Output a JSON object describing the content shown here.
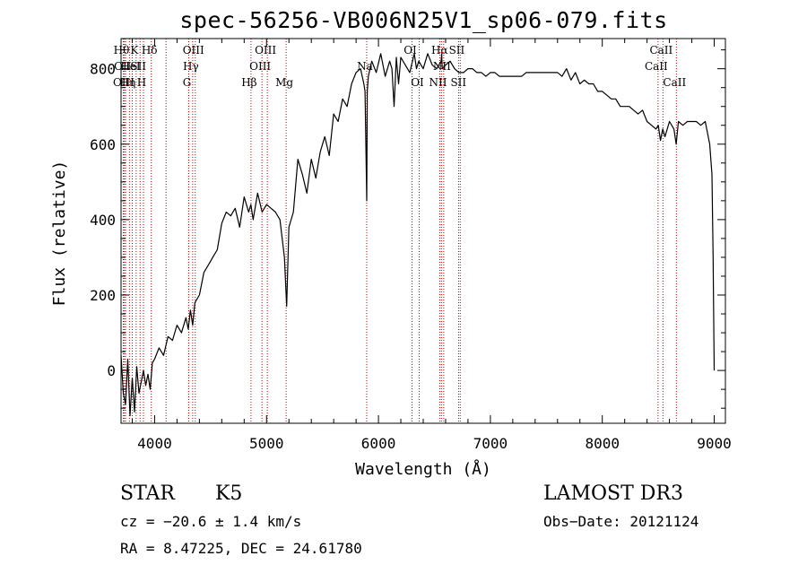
{
  "chart_data": {
    "type": "line",
    "title": "spec-56256-VB006N25V1_sp06-079.fits",
    "xlabel": "Wavelength (Å)",
    "ylabel": "Flux (relative)",
    "xlim": [
      3700,
      9100
    ],
    "ylim": [
      -140,
      880
    ],
    "xticks": [
      4000,
      5000,
      6000,
      7000,
      8000,
      9000
    ],
    "yticks": [
      0,
      200,
      400,
      600,
      800
    ],
    "series": [
      {
        "name": "flux",
        "x": [
          3700,
          3720,
          3740,
          3760,
          3780,
          3800,
          3820,
          3840,
          3860,
          3880,
          3900,
          3920,
          3940,
          3960,
          3980,
          4000,
          4040,
          4080,
          4120,
          4160,
          4200,
          4240,
          4280,
          4300,
          4320,
          4340,
          4360,
          4400,
          4440,
          4480,
          4520,
          4560,
          4600,
          4640,
          4680,
          4720,
          4760,
          4800,
          4840,
          4860,
          4880,
          4920,
          4960,
          5000,
          5040,
          5080,
          5120,
          5160,
          5180,
          5200,
          5240,
          5280,
          5320,
          5360,
          5400,
          5440,
          5480,
          5520,
          5560,
          5600,
          5640,
          5680,
          5720,
          5760,
          5800,
          5840,
          5870,
          5880,
          5890,
          5895,
          5900,
          5910,
          5940,
          5980,
          6020,
          6060,
          6100,
          6120,
          6140,
          6160,
          6180,
          6200,
          6240,
          6280,
          6320,
          6340,
          6360,
          6400,
          6440,
          6480,
          6520,
          6560,
          6565,
          6570,
          6600,
          6640,
          6680,
          6720,
          6760,
          6800,
          6840,
          6880,
          6920,
          6960,
          7000,
          7040,
          7080,
          7120,
          7160,
          7200,
          7240,
          7280,
          7320,
          7360,
          7400,
          7440,
          7480,
          7520,
          7560,
          7600,
          7640,
          7680,
          7720,
          7760,
          7800,
          7840,
          7880,
          7920,
          7960,
          8000,
          8040,
          8080,
          8120,
          8160,
          8200,
          8240,
          8280,
          8320,
          8360,
          8400,
          8440,
          8480,
          8500,
          8520,
          8540,
          8560,
          8600,
          8640,
          8660,
          8680,
          8720,
          8760,
          8800,
          8840,
          8880,
          8920,
          8960,
          8980,
          8990,
          9000
        ],
        "values": [
          40,
          -60,
          -90,
          30,
          -120,
          -20,
          -110,
          10,
          -60,
          -30,
          0,
          -40,
          -10,
          -50,
          20,
          30,
          60,
          40,
          90,
          80,
          120,
          100,
          140,
          110,
          160,
          120,
          180,
          200,
          260,
          280,
          300,
          320,
          390,
          420,
          410,
          430,
          380,
          460,
          420,
          440,
          400,
          470,
          420,
          440,
          430,
          420,
          400,
          300,
          170,
          380,
          420,
          560,
          520,
          470,
          560,
          510,
          580,
          620,
          570,
          680,
          660,
          720,
          700,
          760,
          790,
          800,
          760,
          740,
          560,
          450,
          740,
          780,
          820,
          790,
          840,
          780,
          820,
          800,
          700,
          830,
          760,
          830,
          810,
          790,
          840,
          800,
          820,
          800,
          840,
          810,
          800,
          820,
          840,
          800,
          810,
          820,
          800,
          790,
          790,
          800,
          800,
          790,
          790,
          780,
          790,
          790,
          780,
          780,
          780,
          780,
          780,
          780,
          790,
          790,
          790,
          790,
          790,
          790,
          790,
          790,
          780,
          800,
          770,
          790,
          760,
          770,
          760,
          760,
          740,
          740,
          730,
          720,
          720,
          700,
          700,
          700,
          690,
          680,
          690,
          660,
          650,
          640,
          650,
          610,
          640,
          620,
          660,
          640,
          600,
          660,
          650,
          660,
          660,
          660,
          650,
          660,
          600,
          520,
          300,
          0
        ]
      }
    ],
    "lines": [
      {
        "x": 3720,
        "label": "Hθ",
        "row": 0
      },
      {
        "x": 3730,
        "label": "OII",
        "row": 1
      },
      {
        "x": 3740,
        "label": "OIII",
        "row": 2
      },
      {
        "x": 3775,
        "label": "Hη",
        "row": 2
      },
      {
        "x": 3800,
        "label": "HeI",
        "row": 1
      },
      {
        "x": 3835,
        "label": "K",
        "row": 0
      },
      {
        "x": 3870,
        "label": "SII",
        "row": 1
      },
      {
        "x": 3900,
        "label": "H",
        "row": 2
      },
      {
        "x": 3970,
        "label": "Hδ",
        "row": 0
      },
      {
        "x": 4102,
        "label": "",
        "row": 0
      },
      {
        "x": 4305,
        "label": "G",
        "row": 2
      },
      {
        "x": 4340,
        "label": "Hγ",
        "row": 1
      },
      {
        "x": 4363,
        "label": "OIII",
        "row": 0
      },
      {
        "x": 4861,
        "label": "Hβ",
        "row": 2
      },
      {
        "x": 4959,
        "label": "OIII",
        "row": 1
      },
      {
        "x": 5007,
        "label": "OIII",
        "row": 0
      },
      {
        "x": 5175,
        "label": "Mg",
        "row": 2
      },
      {
        "x": 5895,
        "label": "Na",
        "row": 1
      },
      {
        "x": 6300,
        "label": "OI",
        "row": 0
      },
      {
        "x": 6364,
        "label": "OI",
        "row": 2
      },
      {
        "x": 6548,
        "label": "NII",
        "row": 2
      },
      {
        "x": 6563,
        "label": "Hα",
        "row": 0
      },
      {
        "x": 6583,
        "label": "NII",
        "row": 1
      },
      {
        "x": 6716,
        "label": "SII",
        "row": 0
      },
      {
        "x": 6731,
        "label": "SII",
        "row": 2
      },
      {
        "x": 8498,
        "label": "CaII",
        "row": 1
      },
      {
        "x": 8542,
        "label": "CaII",
        "row": 0
      },
      {
        "x": 8662,
        "label": "CaII",
        "row": 2
      }
    ]
  },
  "info": {
    "class": "STAR",
    "subclass": "K5",
    "survey": "LAMOST DR3",
    "cz": "cz = −20.6 ± 1.4 km/s",
    "obs_date": "Obs−Date: 20121124",
    "radec": "RA =   8.47225, DEC =  24.61780"
  }
}
